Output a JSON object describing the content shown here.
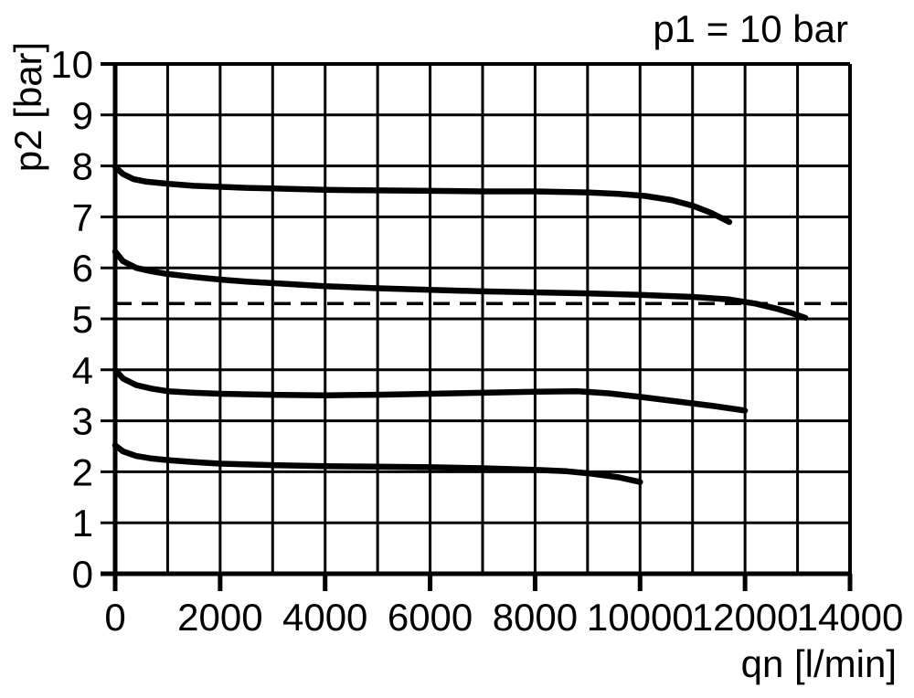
{
  "chart_data": {
    "type": "line",
    "title": "p1 = 10 bar",
    "xlabel": "qn [l/min]",
    "ylabel": "p2 [bar]",
    "xlim": [
      0,
      14000
    ],
    "ylim": [
      0,
      10
    ],
    "x_grid_step": 1000,
    "y_grid_step": 1,
    "x_label_step": 2000,
    "x_tick_labels": [
      "0",
      "2000",
      "4000",
      "6000",
      "8000",
      "10000",
      "12000",
      "14000"
    ],
    "y_tick_labels": [
      "0",
      "1",
      "2",
      "3",
      "4",
      "5",
      "6",
      "7",
      "8",
      "9",
      "10"
    ],
    "grid": true,
    "legend": "none",
    "reference_line": {
      "y": 5.3,
      "style": "dashed"
    },
    "series": [
      {
        "name": "curve starting at 8.0 bar",
        "points": [
          [
            0,
            7.98
          ],
          [
            150,
            7.84
          ],
          [
            350,
            7.74
          ],
          [
            600,
            7.69
          ],
          [
            1000,
            7.65
          ],
          [
            1500,
            7.61
          ],
          [
            2000,
            7.59
          ],
          [
            2500,
            7.57
          ],
          [
            3000,
            7.56
          ],
          [
            4000,
            7.53
          ],
          [
            5000,
            7.52
          ],
          [
            6000,
            7.51
          ],
          [
            7000,
            7.5
          ],
          [
            8000,
            7.5
          ],
          [
            9000,
            7.48
          ],
          [
            9600,
            7.45
          ],
          [
            10100,
            7.41
          ],
          [
            10600,
            7.33
          ],
          [
            11000,
            7.22
          ],
          [
            11350,
            7.08
          ],
          [
            11700,
            6.9
          ]
        ]
      },
      {
        "name": "curve starting at 6.3 bar",
        "points": [
          [
            0,
            6.32
          ],
          [
            150,
            6.13
          ],
          [
            400,
            6.0
          ],
          [
            700,
            5.93
          ],
          [
            1000,
            5.88
          ],
          [
            1500,
            5.82
          ],
          [
            2000,
            5.77
          ],
          [
            2500,
            5.73
          ],
          [
            3000,
            5.7
          ],
          [
            4000,
            5.64
          ],
          [
            5000,
            5.6
          ],
          [
            6000,
            5.57
          ],
          [
            7000,
            5.54
          ],
          [
            8000,
            5.52
          ],
          [
            9000,
            5.5
          ],
          [
            10000,
            5.47
          ],
          [
            11000,
            5.43
          ],
          [
            11700,
            5.38
          ],
          [
            12200,
            5.3
          ],
          [
            12600,
            5.2
          ],
          [
            12900,
            5.11
          ],
          [
            13150,
            5.02
          ]
        ]
      },
      {
        "name": "curve starting at 4.0 bar",
        "points": [
          [
            0,
            4.0
          ],
          [
            150,
            3.83
          ],
          [
            400,
            3.7
          ],
          [
            700,
            3.63
          ],
          [
            1000,
            3.58
          ],
          [
            1500,
            3.55
          ],
          [
            2000,
            3.53
          ],
          [
            3000,
            3.51
          ],
          [
            4000,
            3.5
          ],
          [
            5000,
            3.51
          ],
          [
            6000,
            3.53
          ],
          [
            7000,
            3.55
          ],
          [
            8000,
            3.57
          ],
          [
            8800,
            3.58
          ],
          [
            9400,
            3.54
          ],
          [
            10000,
            3.47
          ],
          [
            10700,
            3.38
          ],
          [
            11400,
            3.29
          ],
          [
            12000,
            3.2
          ]
        ]
      },
      {
        "name": "curve starting at 2.5 bar",
        "points": [
          [
            0,
            2.52
          ],
          [
            150,
            2.4
          ],
          [
            400,
            2.31
          ],
          [
            700,
            2.26
          ],
          [
            1000,
            2.23
          ],
          [
            1500,
            2.19
          ],
          [
            2000,
            2.16
          ],
          [
            3000,
            2.13
          ],
          [
            4000,
            2.11
          ],
          [
            5000,
            2.1
          ],
          [
            6000,
            2.09
          ],
          [
            7000,
            2.07
          ],
          [
            8000,
            2.04
          ],
          [
            8600,
            2.01
          ],
          [
            9100,
            1.96
          ],
          [
            9600,
            1.89
          ],
          [
            10000,
            1.8
          ]
        ]
      }
    ]
  },
  "colors": {
    "foreground": "#000000",
    "background": "#ffffff"
  }
}
